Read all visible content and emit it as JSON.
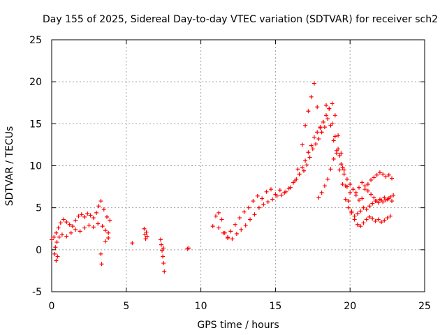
{
  "chart_data": {
    "type": "scatter",
    "title": "Day 155 of 2025, Sidereal Day-to-day VTEC variation (SDTVAR) for receiver sch2",
    "xlabel": "GPS time / hours",
    "ylabel": "SDTVAR / TECUs",
    "xlim": [
      0,
      25
    ],
    "ylim": [
      -5,
      25
    ],
    "xticks": [
      "0",
      "5",
      "10",
      "15",
      "20",
      "25"
    ],
    "yticks": [
      "-5",
      "0",
      "5",
      "10",
      "15",
      "20",
      "25"
    ],
    "grid": true,
    "marker": "+",
    "colors": {
      "series": "#ff0000",
      "grid": "#a0a0a0",
      "axes": "#000000"
    },
    "series": [
      {
        "name": "SDTVAR",
        "x": [
          0.0,
          0.15,
          0.3,
          0.45,
          0.6,
          0.8,
          1.0,
          1.2,
          1.4,
          1.6,
          1.8,
          2.0,
          2.2,
          2.4,
          2.6,
          2.8,
          3.0,
          3.15,
          3.3,
          3.5,
          3.7,
          3.9,
          0.25,
          0.35,
          0.5,
          0.7,
          1.0,
          1.3,
          1.6,
          1.9,
          2.2,
          2.5,
          2.8,
          3.1,
          3.4,
          3.6,
          3.8,
          0.2,
          0.3,
          0.4,
          3.3,
          3.35,
          3.6,
          3.8,
          5.4,
          6.2,
          6.25,
          6.3,
          6.35,
          6.4,
          7.3,
          7.35,
          7.4,
          7.45,
          7.5,
          7.55,
          7.5,
          9.1,
          9.2,
          10.8,
          11.0,
          11.2,
          11.4,
          11.6,
          11.8,
          12.0,
          12.3,
          12.6,
          12.9,
          13.2,
          13.5,
          13.8,
          14.1,
          14.4,
          14.7,
          15.0,
          15.3,
          15.6,
          15.9,
          16.2,
          16.5,
          16.8,
          17.0,
          17.2,
          17.4,
          17.6,
          17.8,
          18.0,
          18.2,
          18.4,
          18.6,
          18.8,
          19.0,
          19.2,
          19.4,
          19.6,
          19.8,
          20.0,
          20.2,
          20.4,
          20.6,
          20.8,
          21.0,
          21.2,
          21.4,
          21.6,
          21.8,
          22.0,
          22.2,
          22.4,
          22.6,
          22.8,
          11.2,
          11.5,
          11.8,
          12.1,
          12.4,
          12.7,
          13.0,
          13.3,
          13.6,
          13.9,
          14.2,
          14.5,
          14.8,
          15.1,
          15.4,
          15.7,
          16.0,
          16.3,
          16.6,
          16.9,
          17.1,
          17.3,
          17.5,
          17.7,
          17.9,
          18.1,
          18.3,
          18.5,
          18.7,
          18.9,
          19.1,
          19.3,
          19.5,
          19.7,
          19.9,
          20.1,
          20.3,
          20.5,
          20.7,
          20.9,
          21.1,
          21.3,
          21.5,
          21.7,
          21.9,
          22.1,
          22.3,
          22.5,
          22.7,
          22.9,
          16.4,
          16.6,
          16.8,
          17.0,
          17.2,
          17.4,
          17.6,
          17.8,
          18.0,
          18.2,
          18.4,
          18.6,
          18.8,
          19.0,
          19.2,
          19.4,
          19.6,
          19.8,
          20.0,
          20.2,
          20.4,
          20.6,
          20.8,
          21.0,
          21.2,
          21.4,
          21.6,
          21.8,
          22.0,
          22.2,
          22.4,
          22.6,
          22.8,
          17.9,
          18.1,
          18.3,
          18.5,
          18.7,
          18.9,
          19.1,
          19.3,
          19.5,
          19.7,
          19.9,
          20.1,
          20.3,
          20.5,
          20.7,
          20.9,
          21.1,
          21.3,
          21.5,
          21.7,
          21.9,
          22.1,
          22.3,
          22.5,
          22.7
        ],
        "y": [
          1.2,
          1.5,
          2.0,
          2.6,
          3.2,
          3.6,
          3.3,
          3.0,
          2.8,
          3.5,
          4.0,
          4.2,
          3.9,
          4.3,
          4.1,
          3.8,
          4.4,
          5.2,
          5.8,
          4.8,
          3.9,
          3.5,
          0.3,
          0.9,
          1.5,
          1.8,
          1.6,
          2.0,
          2.4,
          2.2,
          2.6,
          2.9,
          2.7,
          3.1,
          2.8,
          2.3,
          2.0,
          -0.5,
          -1.3,
          -0.8,
          -0.5,
          -1.7,
          1.0,
          1.4,
          0.8,
          2.5,
          1.8,
          1.3,
          2.1,
          1.6,
          1.2,
          0.6,
          -0.1,
          -0.8,
          -1.6,
          -2.6,
          0.2,
          0.1,
          0.2,
          2.8,
          4.0,
          4.4,
          3.6,
          2.0,
          1.5,
          2.2,
          3.0,
          3.8,
          4.5,
          5.0,
          5.8,
          6.4,
          6.1,
          6.9,
          7.2,
          6.6,
          7.1,
          6.8,
          7.3,
          8.0,
          9.6,
          12.5,
          14.8,
          16.5,
          18.2,
          19.8,
          17.0,
          14.5,
          15.2,
          17.2,
          16.8,
          15.0,
          13.5,
          12.0,
          10.2,
          9.0,
          7.5,
          6.8,
          7.2,
          6.5,
          5.9,
          6.1,
          7.2,
          7.8,
          8.3,
          8.6,
          8.9,
          9.2,
          9.0,
          8.7,
          8.9,
          8.5,
          2.6,
          2.0,
          1.4,
          1.3,
          1.9,
          2.4,
          2.9,
          3.6,
          4.2,
          5.0,
          5.4,
          5.7,
          6.0,
          6.4,
          6.5,
          6.9,
          7.4,
          8.2,
          9.0,
          9.4,
          10.1,
          11.0,
          12.0,
          12.6,
          13.2,
          14.0,
          14.6,
          15.6,
          14.8,
          13.0,
          11.5,
          9.5,
          7.8,
          6.0,
          5.0,
          4.4,
          4.0,
          4.3,
          4.6,
          5.0,
          4.8,
          5.2,
          5.5,
          5.8,
          5.6,
          5.9,
          6.2,
          6.0,
          6.3,
          6.5,
          8.4,
          9.0,
          9.8,
          10.6,
          11.6,
          12.4,
          13.4,
          14.0,
          14.6,
          15.2,
          16.0,
          16.8,
          17.4,
          16.0,
          13.6,
          11.5,
          9.5,
          8.4,
          7.8,
          7.2,
          6.8,
          7.4,
          8.0,
          7.6,
          7.0,
          6.6,
          6.2,
          5.8,
          6.0,
          5.7,
          5.9,
          6.1,
          5.8,
          6.2,
          6.8,
          7.6,
          8.4,
          9.6,
          10.8,
          11.8,
          11.2,
          9.8,
          7.6,
          5.8,
          4.6,
          3.6,
          3.0,
          2.8,
          3.2,
          3.6,
          3.9,
          3.7,
          3.4,
          3.6,
          3.3,
          3.5,
          3.8,
          4.0
        ]
      }
    ]
  }
}
